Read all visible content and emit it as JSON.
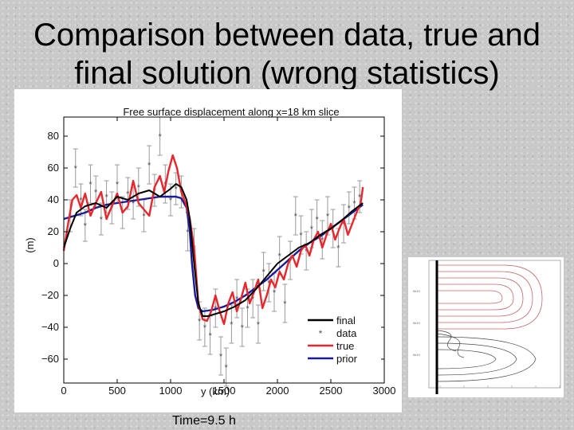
{
  "slide": {
    "title_line1": "Comparison between data, true and",
    "title_line2": "final solution (wrong statistics)",
    "caption": "Time=9.5 h"
  },
  "colors": {
    "final": "#000000",
    "data": "#555555",
    "true": "#e8262b",
    "prior": "#1a1a9c"
  },
  "chart_data": {
    "type": "line",
    "title": "Free surface displacement along x=18 km slice",
    "xlabel": "y (km)",
    "ylabel": "(m)",
    "xlim": [
      0,
      3000
    ],
    "ylim": [
      -75,
      92
    ],
    "xticks": [
      0,
      500,
      1000,
      1500,
      2000,
      2500,
      3000
    ],
    "yticks": [
      80,
      60,
      40,
      20,
      0,
      -20,
      -40,
      -60
    ],
    "legend_position": "bottom-right",
    "series": [
      {
        "name": "final",
        "style": "line",
        "color": "#000000",
        "x": [
          0,
          60,
          120,
          200,
          300,
          400,
          500,
          600,
          700,
          800,
          900,
          1000,
          1050,
          1100,
          1150,
          1180,
          1220,
          1260,
          1300,
          1350,
          1400,
          1500,
          1600,
          1700,
          1800,
          1900,
          2000,
          2100,
          2200,
          2300,
          2400,
          2500,
          2600,
          2700,
          2800
        ],
        "y": [
          10,
          22,
          32,
          36,
          38,
          35,
          42,
          40,
          44,
          46,
          42,
          47,
          50,
          48,
          40,
          28,
          0,
          -25,
          -33,
          -33,
          -32,
          -30,
          -27,
          -23,
          -16,
          -8,
          0,
          5,
          10,
          13,
          18,
          22,
          27,
          33,
          38
        ]
      },
      {
        "name": "data",
        "style": "errorbar",
        "color": "#555555",
        "x": [
          60,
          110,
          160,
          200,
          250,
          300,
          350,
          400,
          450,
          500,
          550,
          600,
          650,
          700,
          750,
          800,
          850,
          900,
          950,
          1000,
          1050,
          1100,
          1160,
          1220,
          1270,
          1320,
          1370,
          1420,
          1470,
          1520,
          1570,
          1620,
          1670,
          1720,
          1770,
          1820,
          1870,
          1920,
          1970,
          2020,
          2070,
          2120,
          2170,
          2220,
          2270,
          2320,
          2370,
          2420,
          2470,
          2520,
          2570,
          2620,
          2670,
          2720,
          2770
        ],
        "y": [
          30,
          60,
          40,
          24,
          50,
          45,
          28,
          42,
          35,
          50,
          32,
          44,
          38,
          48,
          30,
          62,
          46,
          80,
          50,
          40,
          47,
          45,
          20,
          10,
          -36,
          -40,
          -45,
          -28,
          -58,
          -65,
          -38,
          -22,
          -40,
          -28,
          -22,
          -38,
          -5,
          -12,
          -18,
          5,
          -25,
          2,
          30,
          18,
          8,
          22,
          28,
          15,
          30,
          22,
          10,
          25,
          35,
          38,
          42
        ],
        "err": [
          10,
          12,
          10,
          10,
          12,
          10,
          10,
          10,
          10,
          12,
          10,
          10,
          10,
          12,
          10,
          12,
          10,
          12,
          12,
          10,
          10,
          10,
          12,
          12,
          12,
          12,
          12,
          12,
          12,
          12,
          12,
          12,
          12,
          12,
          12,
          12,
          12,
          12,
          12,
          12,
          12,
          12,
          12,
          12,
          12,
          12,
          12,
          12,
          12,
          12,
          12,
          12,
          10,
          10,
          10
        ]
      },
      {
        "name": "true",
        "style": "line",
        "color": "#e8262b",
        "x": [
          0,
          40,
          80,
          120,
          160,
          200,
          250,
          300,
          350,
          400,
          450,
          500,
          550,
          600,
          650,
          700,
          750,
          800,
          850,
          900,
          940,
          980,
          1020,
          1060,
          1100,
          1140,
          1180,
          1220,
          1260,
          1300,
          1340,
          1380,
          1420,
          1460,
          1500,
          1540,
          1580,
          1620,
          1660,
          1700,
          1740,
          1780,
          1820,
          1860,
          1900,
          1940,
          1980,
          2020,
          2060,
          2100,
          2140,
          2180,
          2220,
          2260,
          2300,
          2340,
          2380,
          2420,
          2460,
          2500,
          2540,
          2580,
          2620,
          2660,
          2700,
          2740,
          2780,
          2800
        ],
        "y": [
          8,
          25,
          40,
          43,
          35,
          44,
          30,
          38,
          45,
          28,
          36,
          44,
          32,
          36,
          52,
          38,
          34,
          30,
          48,
          55,
          45,
          58,
          68,
          60,
          45,
          38,
          28,
          10,
          -25,
          -35,
          -36,
          -30,
          -20,
          -30,
          -38,
          -25,
          -18,
          -30,
          -22,
          -12,
          -25,
          -18,
          -10,
          -28,
          -20,
          -10,
          -15,
          -5,
          -10,
          0,
          5,
          -2,
          8,
          12,
          5,
          15,
          20,
          10,
          18,
          25,
          15,
          22,
          28,
          18,
          25,
          32,
          38,
          48
        ]
      },
      {
        "name": "prior",
        "style": "line",
        "color": "#1a1a9c",
        "x": [
          0,
          100,
          200,
          300,
          400,
          500,
          600,
          700,
          800,
          900,
          1000,
          1050,
          1100,
          1150,
          1180,
          1200,
          1230,
          1260,
          1300,
          1400,
          1500,
          1600,
          1700,
          1800,
          1900,
          2000,
          2100,
          2200,
          2300,
          2400,
          2500,
          2600,
          2700,
          2800
        ],
        "y": [
          28,
          30,
          32,
          35,
          37,
          38,
          39,
          40,
          41,
          42,
          42,
          42,
          41,
          35,
          20,
          0,
          -20,
          -28,
          -30,
          -29,
          -27,
          -24,
          -20,
          -15,
          -10,
          -4,
          2,
          8,
          13,
          17,
          22,
          27,
          32,
          37
        ]
      }
    ]
  },
  "inset": {
    "y_tick_labels": [
      "5e10",
      "5e10",
      "5e10"
    ],
    "x_tick_labels": [
      "",
      "",
      "",
      "",
      "",
      ""
    ]
  }
}
